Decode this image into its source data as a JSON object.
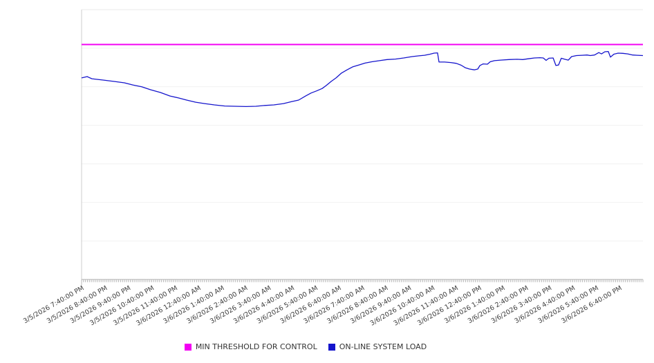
{
  "page": {
    "background": "#ffffff"
  },
  "chart_data": {
    "type": "line",
    "title": "",
    "xlabel": "",
    "ylabel": "",
    "x_axis": {
      "range_hours": [
        0,
        24
      ],
      "label_interval_hours": 1,
      "minor_tick_interval_minutes": 5,
      "labels": [
        "3/5/2026 7:40:00 PM",
        "3/5/2026 8:40:00 PM",
        "3/5/2026 9:40:00 PM",
        "3/5/2026 10:40:00 PM",
        "3/5/2026 11:40:00 PM",
        "3/6/2026 12:40:00 AM",
        "3/6/2026 1:40:00 AM",
        "3/6/2026 2:40:00 AM",
        "3/6/2026 3:40:00 AM",
        "3/6/2026 4:40:00 AM",
        "3/6/2026 5:40:00 AM",
        "3/6/2026 6:40:00 AM",
        "3/6/2026 7:40:00 AM",
        "3/6/2026 8:40:00 AM",
        "3/6/2026 9:40:00 AM",
        "3/6/2026 10:40:00 AM",
        "3/6/2026 11:40:00 AM",
        "3/6/2026 12:40:00 PM",
        "3/6/2026 1:40:00 PM",
        "3/6/2026 2:40:00 PM",
        "3/6/2026 3:40:00 PM",
        "3/6/2026 4:40:00 PM",
        "3/6/2026 5:40:00 PM",
        "3/6/2026 6:40:00 PM"
      ]
    },
    "y_axis": {
      "tick_labels_visible": false,
      "range_pct": [
        0,
        100
      ],
      "gridline_divisions": 7,
      "grid": true
    },
    "legend_position": "bottom",
    "threshold": {
      "name": "MIN THRESHOLD FOR CONTROL",
      "color": "#f300f3",
      "value_pct": 87.1
    },
    "series": [
      {
        "name": "ON-LINE SYSTEM LOAD",
        "color": "#1414cc",
        "points_hour_pct": [
          [
            0.0,
            74.7
          ],
          [
            0.24,
            75.2
          ],
          [
            0.44,
            74.4
          ],
          [
            0.95,
            73.9
          ],
          [
            1.39,
            73.4
          ],
          [
            1.83,
            72.9
          ],
          [
            2.19,
            72.1
          ],
          [
            2.57,
            71.4
          ],
          [
            2.96,
            70.3
          ],
          [
            3.37,
            69.3
          ],
          [
            3.78,
            68.0
          ],
          [
            4.14,
            67.3
          ],
          [
            4.49,
            66.5
          ],
          [
            4.88,
            65.7
          ],
          [
            5.26,
            65.2
          ],
          [
            5.68,
            64.7
          ],
          [
            6.12,
            64.3
          ],
          [
            6.56,
            64.2
          ],
          [
            7.03,
            64.1
          ],
          [
            7.45,
            64.2
          ],
          [
            7.83,
            64.5
          ],
          [
            8.22,
            64.7
          ],
          [
            8.63,
            65.2
          ],
          [
            8.98,
            65.9
          ],
          [
            9.28,
            66.5
          ],
          [
            9.58,
            68.0
          ],
          [
            9.81,
            69.1
          ],
          [
            10.05,
            69.9
          ],
          [
            10.29,
            70.8
          ],
          [
            10.46,
            71.9
          ],
          [
            10.67,
            73.4
          ],
          [
            10.88,
            74.7
          ],
          [
            11.11,
            76.5
          ],
          [
            11.35,
            77.7
          ],
          [
            11.59,
            78.8
          ],
          [
            11.85,
            79.5
          ],
          [
            12.12,
            80.2
          ],
          [
            12.41,
            80.7
          ],
          [
            12.74,
            81.1
          ],
          [
            13.06,
            81.5
          ],
          [
            13.42,
            81.7
          ],
          [
            13.77,
            82.1
          ],
          [
            14.13,
            82.6
          ],
          [
            14.42,
            82.9
          ],
          [
            14.66,
            83.1
          ],
          [
            14.9,
            83.5
          ],
          [
            15.07,
            83.9
          ],
          [
            15.22,
            84.0
          ],
          [
            15.28,
            80.6
          ],
          [
            15.52,
            80.6
          ],
          [
            15.78,
            80.4
          ],
          [
            16.02,
            80.1
          ],
          [
            16.23,
            79.4
          ],
          [
            16.4,
            78.5
          ],
          [
            16.58,
            78.0
          ],
          [
            16.79,
            77.7
          ],
          [
            16.94,
            78.0
          ],
          [
            17.03,
            79.3
          ],
          [
            17.17,
            79.9
          ],
          [
            17.35,
            79.8
          ],
          [
            17.47,
            80.7
          ],
          [
            17.65,
            81.1
          ],
          [
            17.91,
            81.3
          ],
          [
            18.27,
            81.5
          ],
          [
            18.62,
            81.6
          ],
          [
            18.86,
            81.5
          ],
          [
            19.09,
            81.8
          ],
          [
            19.36,
            82.1
          ],
          [
            19.6,
            82.2
          ],
          [
            19.74,
            82.1
          ],
          [
            19.86,
            81.2
          ],
          [
            19.98,
            82.0
          ],
          [
            20.16,
            82.1
          ],
          [
            20.28,
            79.3
          ],
          [
            20.39,
            79.5
          ],
          [
            20.51,
            82.0
          ],
          [
            20.66,
            81.6
          ],
          [
            20.81,
            81.3
          ],
          [
            20.95,
            82.6
          ],
          [
            21.16,
            83.0
          ],
          [
            21.4,
            83.1
          ],
          [
            21.61,
            83.2
          ],
          [
            21.75,
            83.0
          ],
          [
            21.93,
            83.2
          ],
          [
            22.11,
            84.1
          ],
          [
            22.23,
            83.6
          ],
          [
            22.37,
            84.4
          ],
          [
            22.52,
            84.5
          ],
          [
            22.61,
            82.4
          ],
          [
            22.76,
            83.5
          ],
          [
            22.94,
            83.9
          ],
          [
            23.14,
            83.8
          ],
          [
            23.35,
            83.6
          ],
          [
            23.56,
            83.2
          ],
          [
            23.76,
            83.1
          ],
          [
            24.0,
            83.0
          ]
        ]
      }
    ]
  },
  "legend": {
    "items": [
      {
        "label": "MIN THRESHOLD FOR CONTROL",
        "color": "#f300f3"
      },
      {
        "label": "ON-LINE SYSTEM LOAD",
        "color": "#1414cc"
      }
    ]
  }
}
